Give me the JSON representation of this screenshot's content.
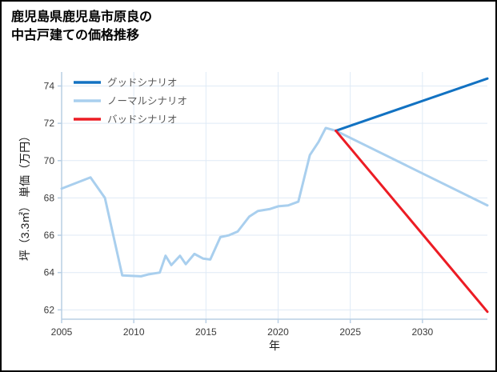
{
  "title": {
    "line1": "鹿児島県鹿児島市原良の",
    "line2": "中古戸建ての価格推移"
  },
  "chart_data": {
    "type": "line",
    "title": "鹿児島県鹿児島市原良の中古戸建ての価格推移",
    "xlabel": "年",
    "ylabel": "坪（3.3㎡） 単価（万円）",
    "xlim": [
      2005,
      2034.5
    ],
    "ylim": [
      61.5,
      74.75
    ],
    "xticks": [
      2005,
      2010,
      2015,
      2020,
      2025,
      2030
    ],
    "yticks": [
      62,
      64,
      66,
      68,
      70,
      72,
      74
    ],
    "grid": true,
    "legend_position": "upper-left-inside",
    "colors": {
      "grid": "#dfeaf6",
      "spine": "#b9cfe4",
      "tick_label": "#3a3a3a",
      "axis_label": "#1a1a1a",
      "legend_label": "#595959"
    },
    "series": [
      {
        "id": "good",
        "name": "グッドシナリオ",
        "color": "#1272c2",
        "z": 2,
        "x": [
          2024,
          2034.5
        ],
        "y": [
          71.6,
          74.4
        ]
      },
      {
        "id": "normal",
        "name": "ノーマルシナリオ",
        "color": "#a9cfee",
        "z": 1,
        "x": [
          2005,
          2006,
          2007,
          2008,
          2009.2,
          2010.5,
          2011,
          2011.8,
          2012.2,
          2012.6,
          2013.2,
          2013.6,
          2014.2,
          2014.8,
          2015.3,
          2016,
          2016.6,
          2017.2,
          2018,
          2018.6,
          2019.4,
          2020,
          2020.7,
          2021.4,
          2022.2,
          2022.8,
          2023.3,
          2024,
          2034.5
        ],
        "y": [
          68.5,
          68.8,
          69.1,
          68.0,
          63.85,
          63.8,
          63.9,
          64.0,
          64.9,
          64.4,
          64.9,
          64.45,
          65.0,
          64.75,
          64.7,
          65.9,
          66.0,
          66.2,
          67.0,
          67.3,
          67.4,
          67.55,
          67.6,
          67.8,
          70.3,
          71.0,
          71.75,
          71.6,
          67.6
        ]
      },
      {
        "id": "bad",
        "name": "バッドシナリオ",
        "color": "#ec1c24",
        "z": 3,
        "x": [
          2024,
          2034.5
        ],
        "y": [
          71.6,
          61.9
        ]
      }
    ]
  }
}
